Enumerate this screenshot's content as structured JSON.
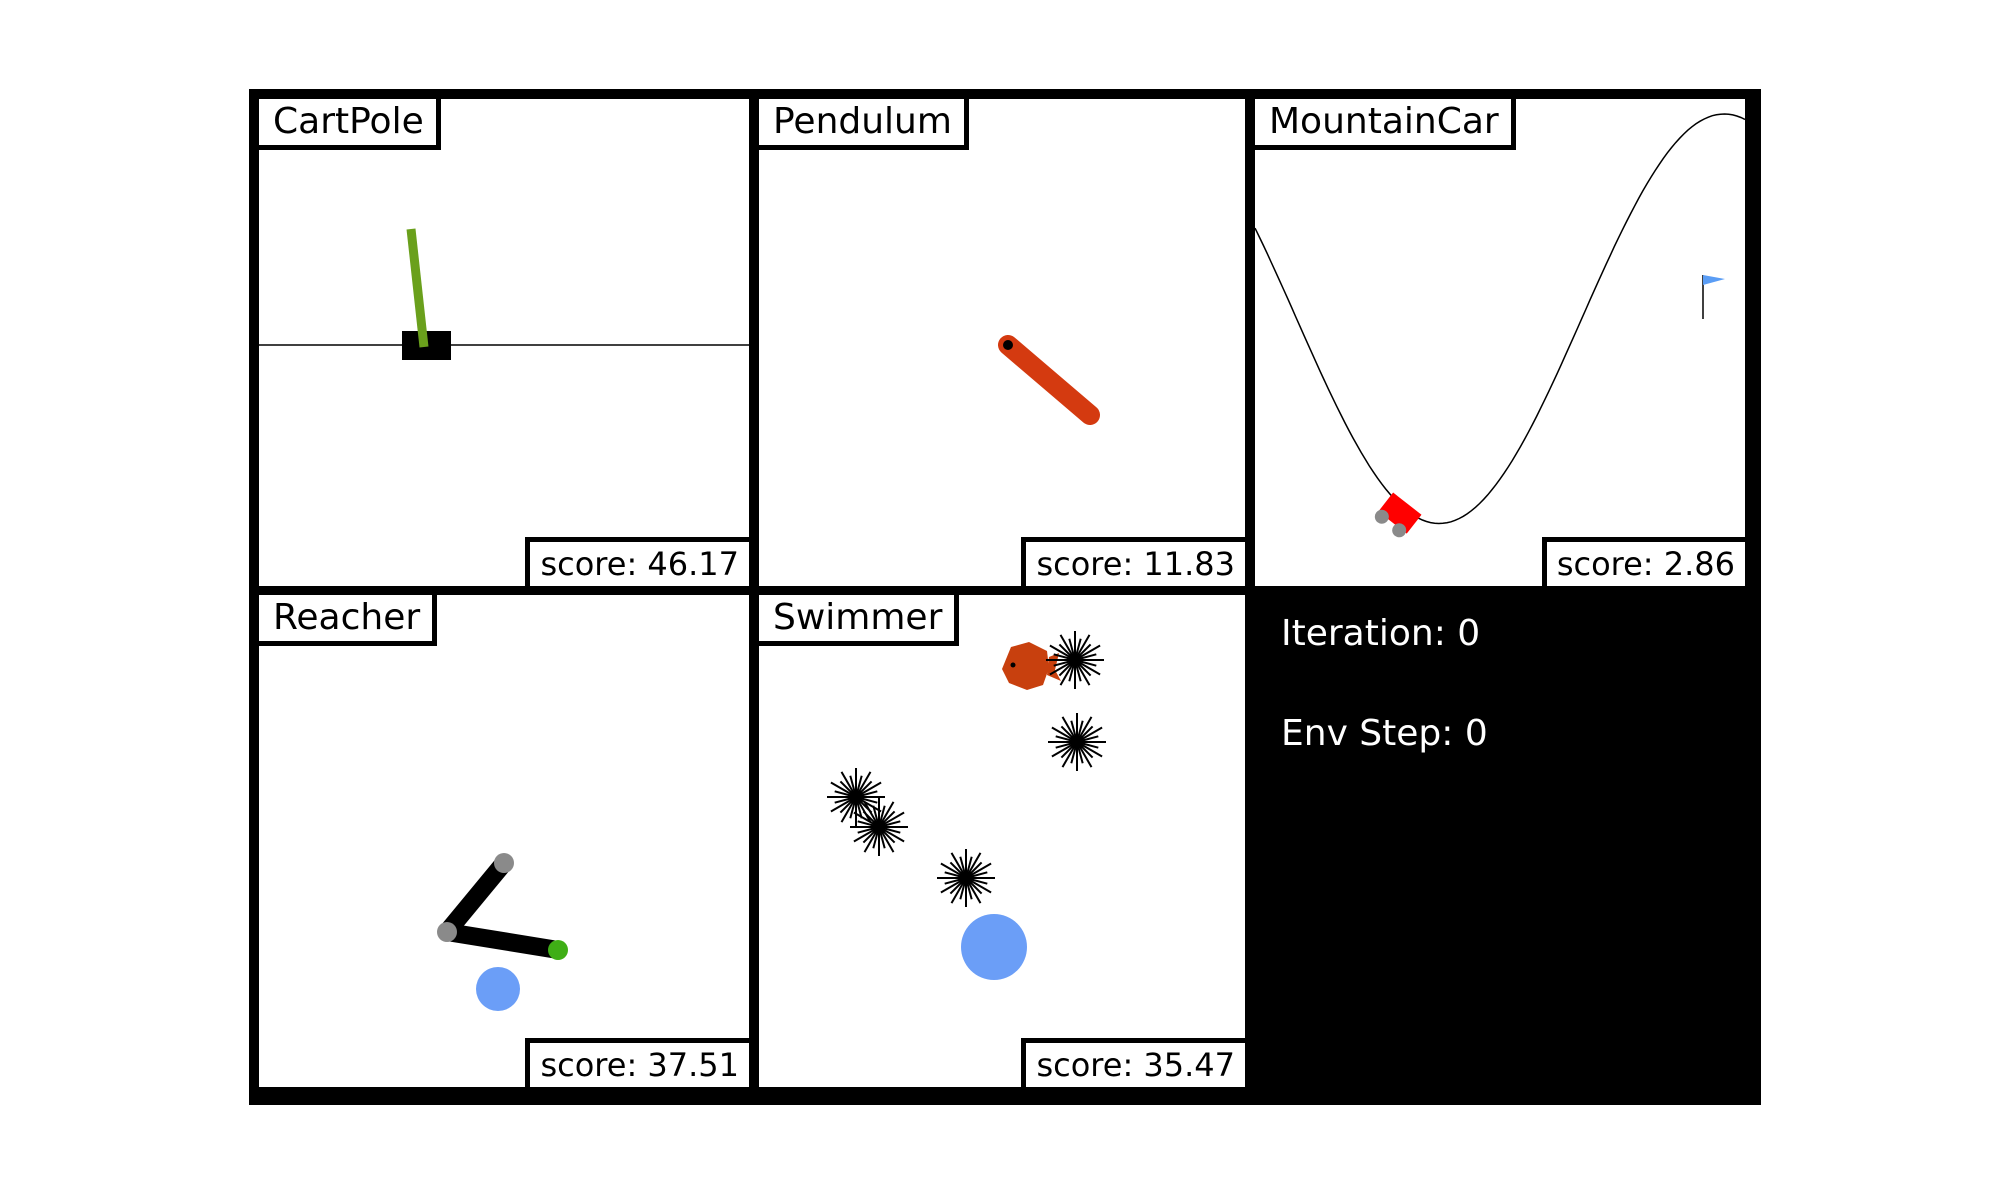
{
  "envs": [
    {
      "name": "CartPole",
      "score_text": "score: 46.17"
    },
    {
      "name": "Pendulum",
      "score_text": "score: 11.83"
    },
    {
      "name": "MountainCar",
      "score_text": "score: 2.86"
    },
    {
      "name": "Reacher",
      "score_text": "score: 37.51"
    },
    {
      "name": "Swimmer",
      "score_text": "score: 35.47"
    }
  ],
  "info": {
    "iteration_text": "Iteration: 0",
    "env_step_text": "Env Step: 0"
  },
  "colors": {
    "frame": "#000000",
    "cartpole_pole": "#6aa01c",
    "pendulum_rod": "#d43a10",
    "mountaincar_car": "#ff0000",
    "mountaincar_flag": "#5a9df5",
    "reacher_target": "#6b9ef7",
    "reacher_tip": "#3fae16",
    "swimmer_fish": "#c8400e",
    "swimmer_ball": "#6b9ef7"
  }
}
